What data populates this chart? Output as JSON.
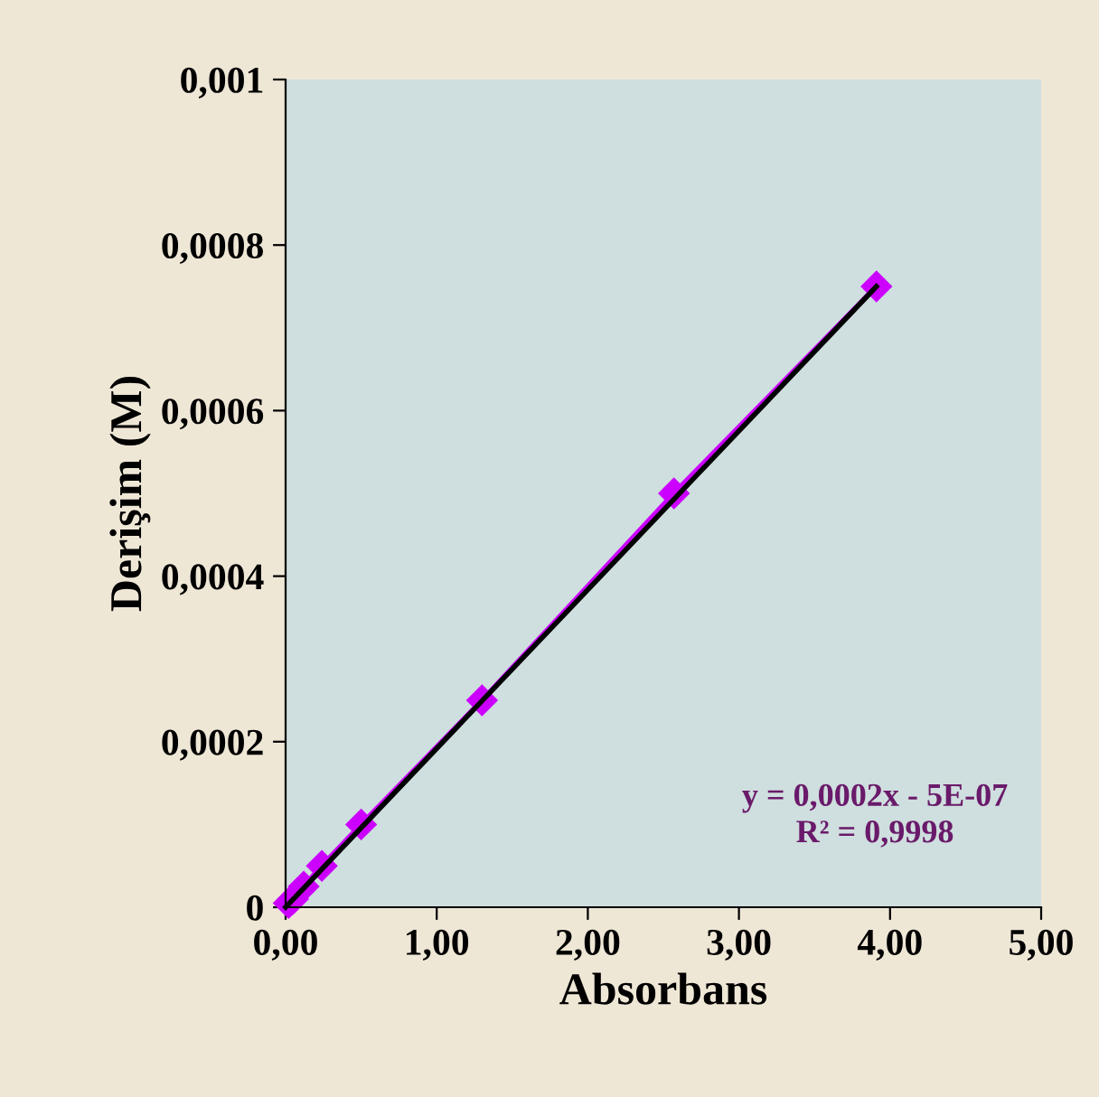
{
  "chart_data": {
    "type": "line",
    "xlabel": "Absorbans",
    "ylabel": "Derişim (M)",
    "series": [
      {
        "color": "#cc00ff",
        "x": [
          0.02,
          0.05,
          0.12,
          0.24,
          0.5,
          1.3,
          2.57,
          3.91
        ],
        "values": [
          5e-06,
          1e-05,
          2.5e-05,
          5e-05,
          0.0001,
          0.00025,
          0.0005,
          0.00075
        ],
        "marker": "diamond"
      },
      {
        "type": "line",
        "color": "#000000",
        "x": [
          0,
          3.91
        ],
        "values": [
          0,
          0.00075
        ],
        "marker": "none"
      }
    ],
    "xlim": [
      0,
      5
    ],
    "xticks": [
      {
        "value": 0,
        "label": "0,00"
      },
      {
        "value": 1,
        "label": "1,00"
      },
      {
        "value": 2,
        "label": "2,00"
      },
      {
        "value": 3,
        "label": "3,00"
      },
      {
        "value": 4,
        "label": "4,00"
      },
      {
        "value": 5,
        "label": "5,00"
      }
    ],
    "ylim": [
      0,
      0.001
    ],
    "yticks": [
      {
        "value": 0,
        "label": "0"
      },
      {
        "value": 0.0002,
        "label": "0,0002"
      },
      {
        "value": 0.0004,
        "label": "0,0004"
      },
      {
        "value": 0.0006,
        "label": "0,0006"
      },
      {
        "value": 0.0008,
        "label": "0,0008"
      },
      {
        "value": 0.001,
        "label": "0,001"
      }
    ],
    "annotations": [
      "y = 0,0002x - 5E-07\nR² = 0,9998"
    ]
  }
}
